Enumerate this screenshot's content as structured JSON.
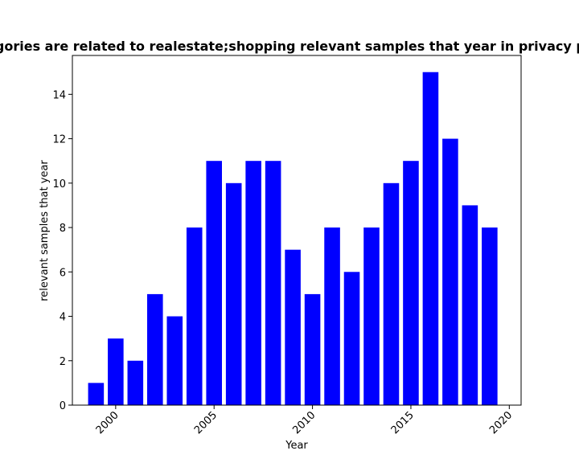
{
  "chart_data": {
    "type": "bar",
    "title": "Categories are related to realestate;shopping relevant samples that year in privacy policies",
    "xlabel": "Year",
    "ylabel": "relevant samples that year",
    "x": [
      1999,
      2000,
      2001,
      2002,
      2003,
      2004,
      2005,
      2006,
      2007,
      2008,
      2009,
      2010,
      2011,
      2012,
      2013,
      2014,
      2015,
      2016,
      2017,
      2018,
      2019
    ],
    "values": [
      1,
      3,
      2,
      5,
      4,
      8,
      11,
      10,
      11,
      11,
      7,
      5,
      8,
      6,
      8,
      10,
      11,
      15,
      12,
      9,
      8
    ],
    "xlim": [
      1997.8,
      2020.6
    ],
    "ylim": [
      0,
      15.75
    ],
    "xticks": [
      "2000",
      "2005",
      "2010",
      "2015",
      "2020"
    ],
    "yticks": [
      "0",
      "2",
      "4",
      "6",
      "8",
      "10",
      "12",
      "14"
    ],
    "bar_color": "#0000ff",
    "grid": false,
    "legend": "none"
  }
}
